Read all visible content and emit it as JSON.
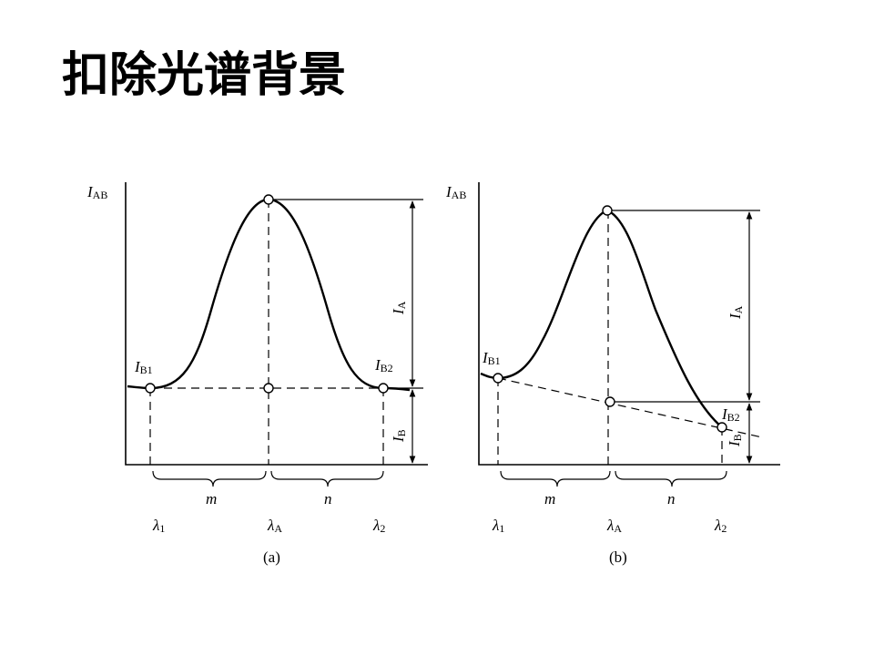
{
  "title": "扣除光谱背景",
  "panels": [
    {
      "y_axis": {
        "main": "I",
        "sub": "AB"
      },
      "background_left": {
        "main": "I",
        "sub": "B1"
      },
      "background_right": {
        "main": "I",
        "sub": "B2"
      },
      "peak_height": {
        "main": "I",
        "sub": "A"
      },
      "background_height": {
        "main": "I",
        "sub": "B"
      },
      "interval_left": "m",
      "interval_right": "n",
      "wavelength_left": {
        "main": "λ",
        "sub": "1"
      },
      "wavelength_peak": {
        "main": "λ",
        "sub": "A"
      },
      "wavelength_right": {
        "main": "λ",
        "sub": "2"
      },
      "caption": "(a)"
    },
    {
      "y_axis": {
        "main": "I",
        "sub": "AB"
      },
      "background_left": {
        "main": "I",
        "sub": "B1"
      },
      "background_right": {
        "main": "I",
        "sub": "B2"
      },
      "peak_height": {
        "main": "I",
        "sub": "A"
      },
      "background_height": {
        "main": "I",
        "sub": "B"
      },
      "interval_left": "m",
      "interval_right": "n",
      "wavelength_left": {
        "main": "λ",
        "sub": "1"
      },
      "wavelength_peak": {
        "main": "λ",
        "sub": "A"
      },
      "wavelength_right": {
        "main": "λ",
        "sub": "2"
      },
      "caption": "(b)"
    }
  ]
}
